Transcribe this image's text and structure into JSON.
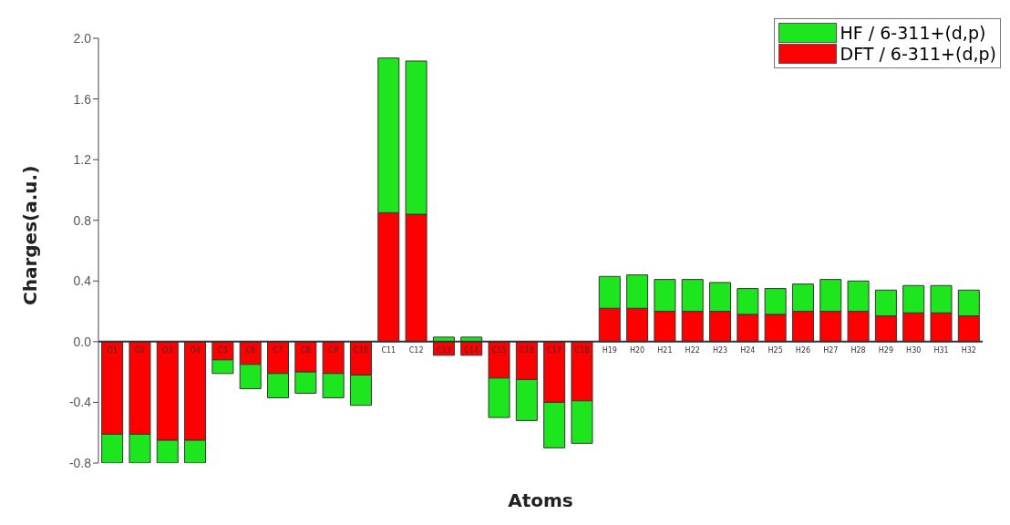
{
  "chart_data": {
    "type": "bar",
    "xlabel": "Atoms",
    "ylabel": "Charges(a.u.)",
    "stacked": true,
    "categories": [
      "O1",
      "O2",
      "O3",
      "O4",
      "C5",
      "C6",
      "C7",
      "C8",
      "C9",
      "C10",
      "C11",
      "C12",
      "C13",
      "C14",
      "C15",
      "C16",
      "C17",
      "C18",
      "H19",
      "H20",
      "H21",
      "H22",
      "H23",
      "H24",
      "H25",
      "H26",
      "H27",
      "H28",
      "H29",
      "H30",
      "H31",
      "H32"
    ],
    "series": [
      {
        "name": "DFT / 6-311+(d,p)",
        "color": "#ff0000",
        "values": [
          -0.61,
          -0.61,
          -0.65,
          -0.65,
          -0.12,
          -0.15,
          -0.21,
          -0.2,
          -0.21,
          -0.22,
          0.85,
          0.84,
          -0.09,
          -0.09,
          -0.24,
          -0.25,
          -0.4,
          -0.39,
          0.22,
          0.22,
          0.2,
          0.2,
          0.2,
          0.18,
          0.18,
          0.2,
          0.2,
          0.2,
          0.17,
          0.19,
          0.19,
          0.17
        ]
      },
      {
        "name": "HF / 6-311+(d,p)",
        "color": "#1ee61e",
        "values": [
          -0.19,
          -0.19,
          -0.15,
          -0.15,
          -0.09,
          -0.16,
          -0.16,
          -0.14,
          -0.16,
          -0.2,
          1.02,
          1.01,
          0.03,
          0.03,
          -0.26,
          -0.27,
          -0.3,
          -0.28,
          0.21,
          0.22,
          0.21,
          0.21,
          0.19,
          0.17,
          0.17,
          0.18,
          0.21,
          0.2,
          0.17,
          0.18,
          0.18,
          0.17
        ]
      }
    ],
    "ylim": [
      -0.8,
      2.0
    ],
    "yticks": [
      {
        "value": -0.8,
        "label": "-0.8"
      },
      {
        "value": -0.4,
        "label": "-0.4"
      },
      {
        "value": 0,
        "label": "0.0"
      },
      {
        "value": 0.4,
        "label": "0.4"
      },
      {
        "value": 0.8,
        "label": "0.8"
      },
      {
        "value": 1.2,
        "label": "1.2"
      },
      {
        "value": 1.6,
        "label": "1.6"
      },
      {
        "value": 2.0,
        "label": "2.0"
      }
    ],
    "legend": "top right"
  }
}
